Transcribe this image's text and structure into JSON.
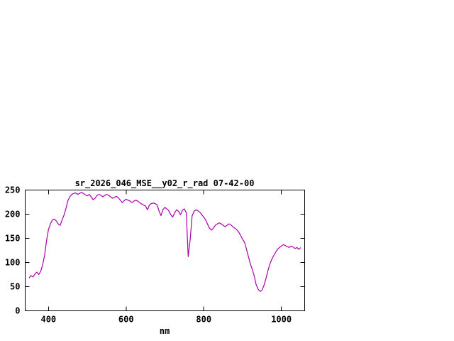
{
  "page": {
    "background_color": "#ffffff"
  },
  "chart_data": {
    "type": "line",
    "title": "sr_2026_046_MSE__y02_r_rad 07-42-00",
    "xlabel": "nm",
    "ylabel": "",
    "xlim": [
      340,
      1060
    ],
    "ylim": [
      0,
      250
    ],
    "xticks": [
      400,
      600,
      800,
      1000
    ],
    "yticks": [
      0,
      50,
      100,
      150,
      200,
      250
    ],
    "grid": false,
    "legend_position": "none",
    "line_color": "#aa00aa",
    "axis_color": "#000000",
    "series": [
      {
        "name": "sr_2026_046_MSE__y02_r_rad",
        "x_start": 350,
        "x_step": 5,
        "values": [
          68,
          73,
          70,
          76,
          80,
          75,
          82,
          95,
          115,
          145,
          168,
          180,
          188,
          190,
          186,
          180,
          177,
          188,
          198,
          212,
          228,
          236,
          241,
          243,
          244,
          241,
          243,
          245,
          243,
          240,
          238,
          241,
          236,
          230,
          233,
          239,
          241,
          239,
          236,
          239,
          241,
          239,
          236,
          233,
          235,
          237,
          234,
          229,
          224,
          228,
          231,
          229,
          227,
          224,
          227,
          229,
          227,
          224,
          221,
          219,
          217,
          209,
          219,
          222,
          223,
          222,
          219,
          206,
          197,
          210,
          214,
          211,
          207,
          199,
          194,
          203,
          209,
          206,
          199,
          208,
          211,
          203,
          112,
          148,
          196,
          206,
          209,
          207,
          204,
          199,
          194,
          188,
          179,
          171,
          167,
          171,
          177,
          180,
          182,
          180,
          177,
          174,
          177,
          180,
          178,
          174,
          171,
          168,
          163,
          156,
          148,
          142,
          128,
          112,
          97,
          86,
          72,
          54,
          45,
          40,
          43,
          52,
          66,
          82,
          96,
          106,
          114,
          121,
          127,
          131,
          134,
          137,
          135,
          133,
          131,
          134,
          132,
          129,
          131,
          127,
          131
        ]
      }
    ]
  }
}
